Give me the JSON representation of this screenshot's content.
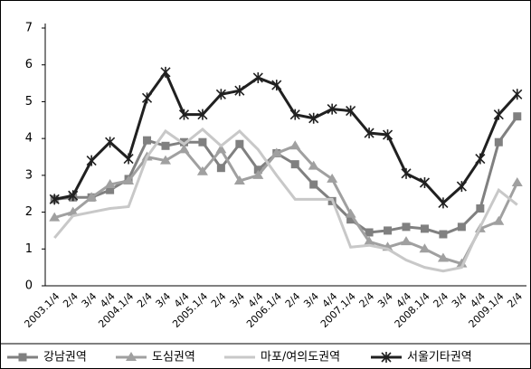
{
  "chart_data": {
    "type": "line",
    "categories": [
      "2003.1/4",
      "2/4",
      "3/4",
      "4/4",
      "2004.1/4",
      "2/4",
      "3/4",
      "4/4",
      "2005.1/4",
      "2/4",
      "3/4",
      "4/4",
      "2006.1/4",
      "2/4",
      "3/4",
      "4/4",
      "2007.1/4",
      "2/4",
      "3/4",
      "4/4",
      "2008.1/4",
      "2/4",
      "3/4",
      "4/4",
      "2009.1/4",
      "2/4"
    ],
    "series": [
      {
        "name": "강남권역",
        "color": "#808080",
        "marker": "square",
        "values": [
          2.35,
          2.4,
          2.4,
          2.6,
          2.9,
          3.95,
          3.8,
          3.9,
          3.9,
          3.2,
          3.85,
          3.15,
          3.6,
          3.3,
          2.75,
          2.3,
          1.8,
          1.45,
          1.5,
          1.6,
          1.55,
          1.4,
          1.6,
          2.1,
          3.9,
          4.6
        ]
      },
      {
        "name": "도심권역",
        "color": "#a0a0a0",
        "marker": "triangle",
        "values": [
          1.85,
          2.0,
          2.4,
          2.75,
          2.85,
          3.5,
          3.4,
          3.7,
          3.1,
          3.7,
          2.85,
          3.0,
          3.6,
          3.8,
          3.25,
          2.9,
          1.95,
          1.2,
          1.05,
          1.2,
          1.0,
          0.75,
          0.6,
          1.55,
          1.75,
          2.8
        ]
      },
      {
        "name": "마포/여의도권역",
        "color": "#c8c8c8",
        "marker": "none",
        "values": [
          1.3,
          1.9,
          2.0,
          2.1,
          2.15,
          3.5,
          4.2,
          3.85,
          4.25,
          3.8,
          4.2,
          3.7,
          3.0,
          2.35,
          2.35,
          2.35,
          1.05,
          1.1,
          1.0,
          0.7,
          0.5,
          0.4,
          0.5,
          1.6,
          2.6,
          2.2
        ]
      },
      {
        "name": "서울기타권역",
        "color": "#202020",
        "marker": "cross",
        "values": [
          2.35,
          2.45,
          3.4,
          3.9,
          3.45,
          5.1,
          5.8,
          4.65,
          4.65,
          5.2,
          5.3,
          5.65,
          5.45,
          4.65,
          4.55,
          4.8,
          4.75,
          4.15,
          4.1,
          3.05,
          2.8,
          2.25,
          2.7,
          3.45,
          4.65,
          5.2
        ]
      }
    ],
    "ylim": [
      0,
      7
    ],
    "yticks": [
      0,
      1,
      2,
      3,
      4,
      5,
      6,
      7
    ]
  }
}
